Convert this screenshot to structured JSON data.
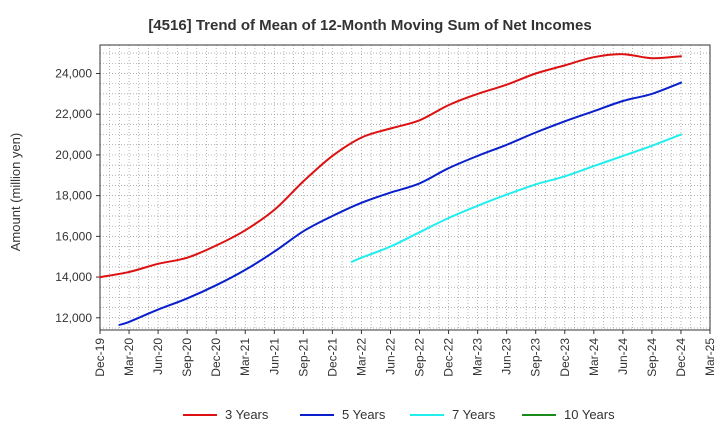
{
  "chart_data": {
    "type": "line",
    "title": "[4516]  Trend of Mean of 12-Month Moving Sum of Net Incomes",
    "xlabel": "",
    "ylabel": "Amount (million yen)",
    "ylim": [
      11400,
      25400
    ],
    "yticks": [
      12000,
      14000,
      16000,
      18000,
      20000,
      22000,
      24000
    ],
    "ytick_labels": [
      "12,000",
      "14,000",
      "16,000",
      "18,000",
      "20,000",
      "22,000",
      "24,000"
    ],
    "x_start": "Dec-19",
    "x_end": "Mar-25",
    "xtick_labels": [
      "Dec-19",
      "Mar-20",
      "Jun-20",
      "Sep-20",
      "Dec-20",
      "Mar-21",
      "Jun-21",
      "Sep-21",
      "Dec-21",
      "Mar-22",
      "Jun-22",
      "Sep-22",
      "Dec-22",
      "Mar-23",
      "Jun-23",
      "Sep-23",
      "Dec-23",
      "Mar-24",
      "Jun-24",
      "Sep-24",
      "Dec-24",
      "Mar-25"
    ],
    "grid": true,
    "legend_position": "bottom",
    "series": [
      {
        "name": "3 Years",
        "color": "#dd1111",
        "points": [
          [
            "Dec-19",
            14000
          ],
          [
            "Mar-20",
            14250
          ],
          [
            "Jun-20",
            14650
          ],
          [
            "Sep-20",
            14950
          ],
          [
            "Dec-20",
            15550
          ],
          [
            "Mar-21",
            16300
          ],
          [
            "Jun-21",
            17300
          ],
          [
            "Sep-21",
            18700
          ],
          [
            "Dec-21",
            19950
          ],
          [
            "Mar-22",
            20850
          ],
          [
            "Jun-22",
            21300
          ],
          [
            "Sep-22",
            21700
          ],
          [
            "Dec-22",
            22450
          ],
          [
            "Mar-23",
            23000
          ],
          [
            "Jun-23",
            23450
          ],
          [
            "Sep-23",
            24000
          ],
          [
            "Dec-23",
            24400
          ],
          [
            "Mar-24",
            24800
          ],
          [
            "Jun-24",
            24950
          ],
          [
            "Sep-24",
            24750
          ],
          [
            "Dec-24",
            24850
          ]
        ]
      },
      {
        "name": "5 Years",
        "color": "#0a1fcc",
        "points": [
          [
            "Feb-20",
            11650
          ],
          [
            "Mar-20",
            11800
          ],
          [
            "Jun-20",
            12400
          ],
          [
            "Sep-20",
            12950
          ],
          [
            "Dec-20",
            13600
          ],
          [
            "Mar-21",
            14350
          ],
          [
            "Jun-21",
            15250
          ],
          [
            "Sep-21",
            16250
          ],
          [
            "Dec-21",
            17000
          ],
          [
            "Mar-22",
            17650
          ],
          [
            "Jun-22",
            18150
          ],
          [
            "Sep-22",
            18600
          ],
          [
            "Dec-22",
            19350
          ],
          [
            "Mar-23",
            19950
          ],
          [
            "Jun-23",
            20500
          ],
          [
            "Sep-23",
            21100
          ],
          [
            "Dec-23",
            21650
          ],
          [
            "Mar-24",
            22150
          ],
          [
            "Jun-24",
            22650
          ],
          [
            "Sep-24",
            23000
          ],
          [
            "Dec-24",
            23550
          ]
        ]
      },
      {
        "name": "7 Years",
        "color": "#22eeee",
        "points": [
          [
            "Feb-22",
            14750
          ],
          [
            "Mar-22",
            14950
          ],
          [
            "Jun-22",
            15500
          ],
          [
            "Sep-22",
            16200
          ],
          [
            "Dec-22",
            16900
          ],
          [
            "Mar-23",
            17500
          ],
          [
            "Jun-23",
            18050
          ],
          [
            "Sep-23",
            18550
          ],
          [
            "Dec-23",
            18950
          ],
          [
            "Mar-24",
            19450
          ],
          [
            "Jun-24",
            19950
          ],
          [
            "Sep-24",
            20450
          ],
          [
            "Dec-24",
            21000
          ]
        ]
      },
      {
        "name": "10 Years",
        "color": "#1a8a1a",
        "points": []
      }
    ]
  }
}
